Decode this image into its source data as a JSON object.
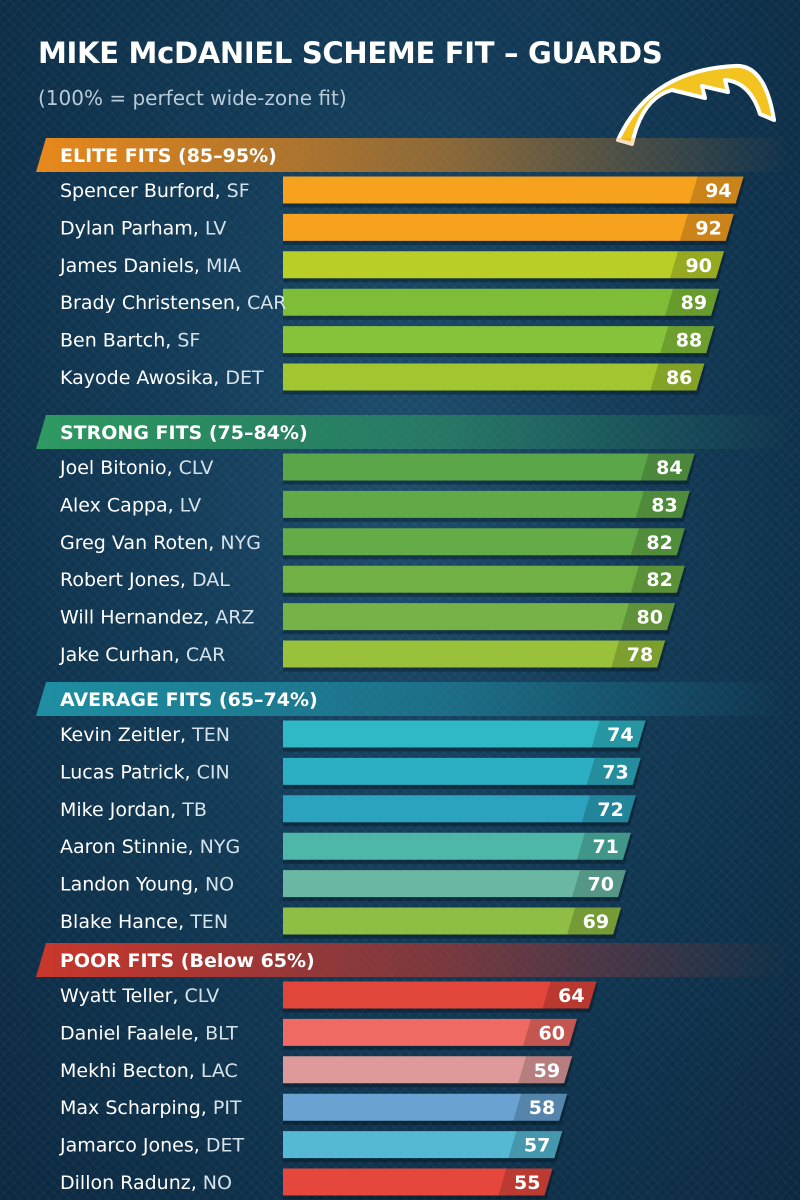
{
  "title": "MIKE McDANIEL SCHEME FIT – GUARDS",
  "subtitle": "(100% = perfect wide-zone fit)",
  "logo_icon": "chargers-bolt-icon",
  "chart_data": {
    "type": "bar",
    "orientation": "horizontal",
    "title": "MIKE McDANIEL SCHEME FIT – GUARDS",
    "subtitle": "(100% = perfect wide-zone fit)",
    "value_unit": "percent",
    "xlim": [
      0,
      100
    ],
    "groups": [
      {
        "name": "ELITE FITS (85–95%)",
        "color": "#e8891c",
        "players": [
          {
            "name": "Spencer Burford",
            "team": "SF",
            "value": 94,
            "color": "#f7a21f"
          },
          {
            "name": "Dylan Parham",
            "team": "LV",
            "value": 92,
            "color": "#f7a21f"
          },
          {
            "name": "James Daniels",
            "team": "MIA",
            "value": 90,
            "color": "#b9cf28"
          },
          {
            "name": "Brady Christensen",
            "team": "CAR",
            "value": 89,
            "color": "#7ebd35"
          },
          {
            "name": "Ben Bartch",
            "team": "SF",
            "value": 88,
            "color": "#86c23a"
          },
          {
            "name": "Kayode Awosika",
            "team": "DET",
            "value": 86,
            "color": "#a2c62f"
          }
        ]
      },
      {
        "name": "STRONG FITS (75–84%)",
        "color": "#2e9a62",
        "players": [
          {
            "name": "Joel Bitonio",
            "team": "CLV",
            "value": 84,
            "color": "#5ca64a"
          },
          {
            "name": "Alex Cappa",
            "team": "LV",
            "value": 83,
            "color": "#62aa48"
          },
          {
            "name": "Greg Van Roten",
            "team": "NYG",
            "value": 82,
            "color": "#64ac48"
          },
          {
            "name": "Robert Jones",
            "team": "DAL",
            "value": 82,
            "color": "#70b045"
          },
          {
            "name": "Will Hernandez",
            "team": "ARZ",
            "value": 80,
            "color": "#76b247"
          },
          {
            "name": "Jake Curhan",
            "team": "CAR",
            "value": 78,
            "color": "#99c23a"
          }
        ]
      },
      {
        "name": "AVERAGE FITS (65–74%)",
        "color": "#1f8fa3",
        "players": [
          {
            "name": "Kevin Zeitler",
            "team": "TEN",
            "value": 74,
            "color": "#2fb9c6"
          },
          {
            "name": "Lucas Patrick",
            "team": "CIN",
            "value": 73,
            "color": "#2caec3"
          },
          {
            "name": "Mike Jordan",
            "team": "TB",
            "value": 72,
            "color": "#2ba3bf"
          },
          {
            "name": "Aaron Stinnie",
            "team": "NYG",
            "value": 71,
            "color": "#4fb7a8"
          },
          {
            "name": "Landon Young",
            "team": "NO",
            "value": 70,
            "color": "#6ab8a4"
          },
          {
            "name": "Blake Hance",
            "team": "TEN",
            "value": 69,
            "color": "#8fbe44"
          }
        ]
      },
      {
        "name": "POOR FITS (Below 65%)",
        "color": "#c9372c",
        "players": [
          {
            "name": "Wyatt Teller",
            "team": "CLV",
            "value": 64,
            "color": "#e2453a"
          },
          {
            "name": "Daniel Faalele",
            "team": "BLT",
            "value": 60,
            "color": "#ee6a62"
          },
          {
            "name": "Mekhi Becton",
            "team": "LAC",
            "value": 59,
            "color": "#de9a9a"
          },
          {
            "name": "Max Scharping",
            "team": "PIT",
            "value": 58,
            "color": "#6aa3d2"
          },
          {
            "name": "Jamarco Jones",
            "team": "DET",
            "value": 57,
            "color": "#55b9d4"
          },
          {
            "name": "Dillon Radunz",
            "team": "NO",
            "value": 55,
            "color": "#e5473d"
          }
        ]
      }
    ]
  }
}
